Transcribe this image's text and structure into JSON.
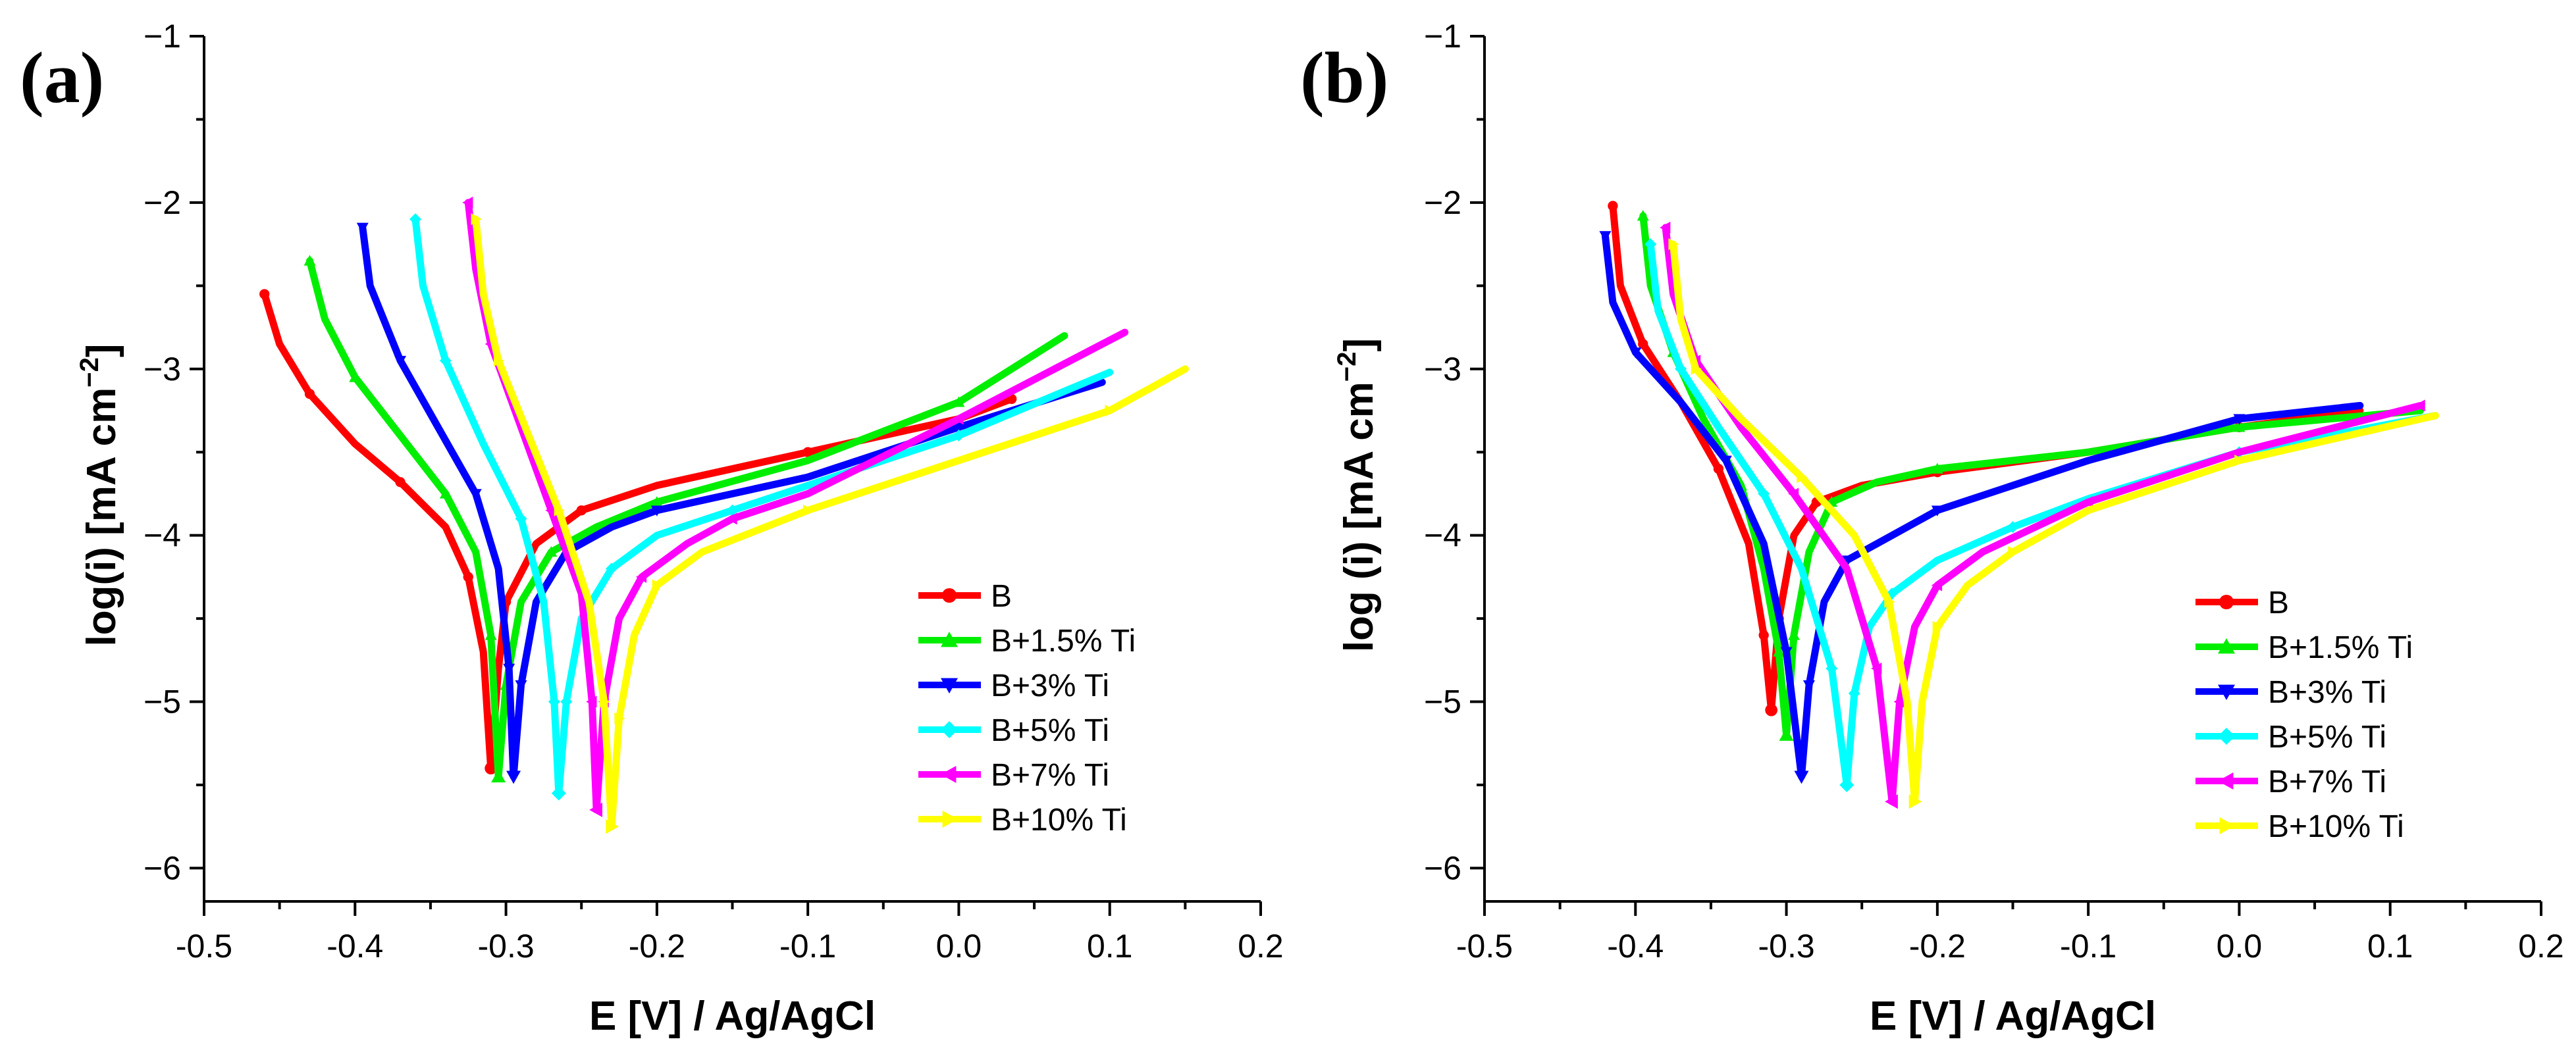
{
  "chart_data": [
    {
      "type": "line",
      "panel": "(a)",
      "xlabel": "E [V] / Ag/AgCl",
      "ylabel_main": "log(i) [mA cm",
      "ylabel_sup": "−2",
      "ylabel_close": "]",
      "xlim": [
        -0.5,
        0.2
      ],
      "ylim": [
        -6.2,
        -1
      ],
      "xticks": [
        -0.5,
        -0.4,
        -0.3,
        -0.2,
        -0.1,
        0.0,
        0.1,
        0.2
      ],
      "xtick_labels": [
        "-0.5",
        "-0.4",
        "-0.3",
        "-0.2",
        "-0.1",
        "0.0",
        "0.1",
        "0.2"
      ],
      "yticks": [
        -6,
        -5,
        -4,
        -3,
        -2,
        -1
      ],
      "ytick_labels": [
        "−6",
        "−5",
        "−4",
        "−3",
        "−2",
        "−1"
      ],
      "legend_position": "lower-right",
      "series": [
        {
          "name": "B",
          "color": "#ff0000",
          "marker": "circle",
          "Ecorr": -0.31,
          "logicorr": -5.4,
          "cathodic": [
            [
              -0.46,
              -2.55
            ],
            [
              -0.45,
              -2.85
            ],
            [
              -0.43,
              -3.15
            ],
            [
              -0.4,
              -3.45
            ],
            [
              -0.37,
              -3.68
            ],
            [
              -0.34,
              -3.95
            ],
            [
              -0.325,
              -4.25
            ],
            [
              -0.315,
              -4.7
            ],
            [
              -0.31,
              -5.4
            ]
          ],
          "anodic": [
            [
              -0.31,
              -5.4
            ],
            [
              -0.305,
              -4.8
            ],
            [
              -0.3,
              -4.4
            ],
            [
              -0.28,
              -4.05
            ],
            [
              -0.25,
              -3.85
            ],
            [
              -0.2,
              -3.7
            ],
            [
              -0.1,
              -3.5
            ],
            [
              0.0,
              -3.3
            ],
            [
              0.035,
              -3.18
            ]
          ]
        },
        {
          "name": "B+1.5% Ti",
          "color": "#00ee00",
          "marker": "triangle-up",
          "Ecorr": -0.305,
          "logicorr": -5.45,
          "cathodic": [
            [
              -0.43,
              -2.35
            ],
            [
              -0.42,
              -2.7
            ],
            [
              -0.4,
              -3.05
            ],
            [
              -0.37,
              -3.4
            ],
            [
              -0.34,
              -3.75
            ],
            [
              -0.32,
              -4.1
            ],
            [
              -0.31,
              -4.6
            ],
            [
              -0.305,
              -5.45
            ]
          ],
          "anodic": [
            [
              -0.305,
              -5.45
            ],
            [
              -0.3,
              -4.9
            ],
            [
              -0.29,
              -4.4
            ],
            [
              -0.27,
              -4.1
            ],
            [
              -0.24,
              -3.95
            ],
            [
              -0.2,
              -3.8
            ],
            [
              -0.1,
              -3.55
            ],
            [
              0.0,
              -3.2
            ],
            [
              0.07,
              -2.8
            ]
          ]
        },
        {
          "name": "B+3% Ti",
          "color": "#0000ff",
          "marker": "triangle-down",
          "Ecorr": -0.295,
          "logicorr": -5.45,
          "cathodic": [
            [
              -0.395,
              -2.15
            ],
            [
              -0.39,
              -2.5
            ],
            [
              -0.37,
              -2.95
            ],
            [
              -0.345,
              -3.35
            ],
            [
              -0.32,
              -3.75
            ],
            [
              -0.305,
              -4.2
            ],
            [
              -0.298,
              -4.8
            ],
            [
              -0.295,
              -5.45
            ]
          ],
          "anodic": [
            [
              -0.295,
              -5.45
            ],
            [
              -0.29,
              -4.9
            ],
            [
              -0.28,
              -4.4
            ],
            [
              -0.26,
              -4.1
            ],
            [
              -0.23,
              -3.95
            ],
            [
              -0.2,
              -3.85
            ],
            [
              -0.1,
              -3.65
            ],
            [
              0.0,
              -3.35
            ],
            [
              0.095,
              -3.08
            ]
          ]
        },
        {
          "name": "B+5% Ti",
          "color": "#00ffff",
          "marker": "diamond",
          "Ecorr": -0.265,
          "logicorr": -5.55,
          "cathodic": [
            [
              -0.36,
              -2.1
            ],
            [
              -0.355,
              -2.5
            ],
            [
              -0.34,
              -2.95
            ],
            [
              -0.315,
              -3.45
            ],
            [
              -0.29,
              -3.9
            ],
            [
              -0.275,
              -4.4
            ],
            [
              -0.268,
              -5.0
            ],
            [
              -0.265,
              -5.55
            ]
          ],
          "anodic": [
            [
              -0.265,
              -5.55
            ],
            [
              -0.26,
              -5.0
            ],
            [
              -0.25,
              -4.5
            ],
            [
              -0.23,
              -4.2
            ],
            [
              -0.2,
              -4.0
            ],
            [
              -0.15,
              -3.85
            ],
            [
              -0.1,
              -3.7
            ],
            [
              0.0,
              -3.4
            ],
            [
              0.1,
              -3.02
            ]
          ]
        },
        {
          "name": "B+7% Ti",
          "color": "#ff00ff",
          "marker": "triangle-left",
          "Ecorr": -0.24,
          "logicorr": -5.65,
          "cathodic": [
            [
              -0.325,
              -2.0
            ],
            [
              -0.32,
              -2.4
            ],
            [
              -0.31,
              -2.85
            ],
            [
              -0.29,
              -3.35
            ],
            [
              -0.27,
              -3.85
            ],
            [
              -0.25,
              -4.35
            ],
            [
              -0.243,
              -5.0
            ],
            [
              -0.24,
              -5.65
            ]
          ],
          "anodic": [
            [
              -0.24,
              -5.65
            ],
            [
              -0.235,
              -5.0
            ],
            [
              -0.225,
              -4.5
            ],
            [
              -0.21,
              -4.25
            ],
            [
              -0.18,
              -4.05
            ],
            [
              -0.15,
              -3.9
            ],
            [
              -0.1,
              -3.75
            ],
            [
              0.0,
              -3.3
            ],
            [
              0.11,
              -2.78
            ]
          ]
        },
        {
          "name": "B+10% Ti",
          "color": "#ffff00",
          "marker": "triangle-right",
          "Ecorr": -0.23,
          "logicorr": -5.75,
          "cathodic": [
            [
              -0.32,
              -2.1
            ],
            [
              -0.315,
              -2.55
            ],
            [
              -0.305,
              -2.95
            ],
            [
              -0.285,
              -3.4
            ],
            [
              -0.265,
              -3.85
            ],
            [
              -0.245,
              -4.4
            ],
            [
              -0.235,
              -5.0
            ],
            [
              -0.23,
              -5.75
            ]
          ],
          "anodic": [
            [
              -0.23,
              -5.75
            ],
            [
              -0.225,
              -5.1
            ],
            [
              -0.215,
              -4.6
            ],
            [
              -0.2,
              -4.3
            ],
            [
              -0.17,
              -4.1
            ],
            [
              -0.1,
              -3.85
            ],
            [
              0.0,
              -3.55
            ],
            [
              0.1,
              -3.25
            ],
            [
              0.15,
              -3.0
            ]
          ]
        }
      ]
    },
    {
      "type": "line",
      "panel": "(b)",
      "xlabel": "E [V] / Ag/AgCl",
      "ylabel_main": "log (i) [mA cm",
      "ylabel_sup": "−2",
      "ylabel_close": "]",
      "xlim": [
        -0.5,
        0.2
      ],
      "ylim": [
        -6.2,
        -1
      ],
      "xticks": [
        -0.5,
        -0.4,
        -0.3,
        -0.2,
        -0.1,
        0.0,
        0.1,
        0.2
      ],
      "xtick_labels": [
        "-0.5",
        "-0.4",
        "-0.3",
        "-0.2",
        "-0.1",
        "0.0",
        "0.1",
        "0.2"
      ],
      "yticks": [
        -6,
        -5,
        -4,
        -3,
        -2,
        -1
      ],
      "ytick_labels": [
        "−6",
        "−5",
        "−4",
        "−3",
        "−2",
        "−1"
      ],
      "legend_position": "lower-right",
      "series": [
        {
          "name": "B",
          "color": "#ff0000",
          "marker": "circle",
          "Ecorr": -0.31,
          "logicorr": -5.05,
          "cathodic": [
            [
              -0.415,
              -2.02
            ],
            [
              -0.41,
              -2.5
            ],
            [
              -0.395,
              -2.85
            ],
            [
              -0.37,
              -3.2
            ],
            [
              -0.345,
              -3.6
            ],
            [
              -0.325,
              -4.05
            ],
            [
              -0.315,
              -4.6
            ],
            [
              -0.31,
              -5.05
            ]
          ],
          "anodic": [
            [
              -0.31,
              -5.05
            ],
            [
              -0.305,
              -4.5
            ],
            [
              -0.295,
              -4.0
            ],
            [
              -0.28,
              -3.8
            ],
            [
              -0.25,
              -3.7
            ],
            [
              -0.2,
              -3.62
            ],
            [
              -0.1,
              -3.5
            ],
            [
              0.0,
              -3.35
            ],
            [
              0.08,
              -3.25
            ]
          ]
        },
        {
          "name": "B+1.5% Ti",
          "color": "#00ee00",
          "marker": "triangle-up",
          "Ecorr": -0.3,
          "logicorr": -5.2,
          "cathodic": [
            [
              -0.395,
              -2.08
            ],
            [
              -0.39,
              -2.5
            ],
            [
              -0.375,
              -2.9
            ],
            [
              -0.355,
              -3.3
            ],
            [
              -0.33,
              -3.7
            ],
            [
              -0.315,
              -4.2
            ],
            [
              -0.305,
              -4.7
            ],
            [
              -0.3,
              -5.2
            ]
          ],
          "anodic": [
            [
              -0.3,
              -5.2
            ],
            [
              -0.295,
              -4.6
            ],
            [
              -0.285,
              -4.1
            ],
            [
              -0.27,
              -3.8
            ],
            [
              -0.24,
              -3.68
            ],
            [
              -0.2,
              -3.6
            ],
            [
              -0.1,
              -3.5
            ],
            [
              0.0,
              -3.35
            ],
            [
              0.12,
              -3.25
            ]
          ]
        },
        {
          "name": "B+3% Ti",
          "color": "#0000ff",
          "marker": "triangle-down",
          "Ecorr": -0.29,
          "logicorr": -5.45,
          "cathodic": [
            [
              -0.42,
              -2.2
            ],
            [
              -0.415,
              -2.6
            ],
            [
              -0.4,
              -2.9
            ],
            [
              -0.37,
              -3.2
            ],
            [
              -0.34,
              -3.55
            ],
            [
              -0.315,
              -4.05
            ],
            [
              -0.3,
              -4.7
            ],
            [
              -0.29,
              -5.45
            ]
          ],
          "anodic": [
            [
              -0.29,
              -5.45
            ],
            [
              -0.285,
              -4.9
            ],
            [
              -0.275,
              -4.4
            ],
            [
              -0.26,
              -4.15
            ],
            [
              -0.23,
              -4.0
            ],
            [
              -0.2,
              -3.85
            ],
            [
              -0.1,
              -3.55
            ],
            [
              0.0,
              -3.3
            ],
            [
              0.08,
              -3.22
            ]
          ]
        },
        {
          "name": "B+5% Ti",
          "color": "#00ffff",
          "marker": "diamond",
          "Ecorr": -0.26,
          "logicorr": -5.5,
          "cathodic": [
            [
              -0.39,
              -2.25
            ],
            [
              -0.385,
              -2.65
            ],
            [
              -0.37,
              -3.0
            ],
            [
              -0.345,
              -3.35
            ],
            [
              -0.315,
              -3.75
            ],
            [
              -0.29,
              -4.2
            ],
            [
              -0.27,
              -4.8
            ],
            [
              -0.26,
              -5.5
            ]
          ],
          "anodic": [
            [
              -0.26,
              -5.5
            ],
            [
              -0.255,
              -4.95
            ],
            [
              -0.245,
              -4.55
            ],
            [
              -0.23,
              -4.35
            ],
            [
              -0.2,
              -4.15
            ],
            [
              -0.15,
              -3.95
            ],
            [
              -0.1,
              -3.78
            ],
            [
              0.0,
              -3.5
            ],
            [
              0.13,
              -3.28
            ]
          ]
        },
        {
          "name": "B+7% Ti",
          "color": "#ff00ff",
          "marker": "triangle-left",
          "Ecorr": -0.23,
          "logicorr": -5.6,
          "cathodic": [
            [
              -0.38,
              -2.15
            ],
            [
              -0.375,
              -2.55
            ],
            [
              -0.36,
              -2.95
            ],
            [
              -0.33,
              -3.35
            ],
            [
              -0.295,
              -3.75
            ],
            [
              -0.26,
              -4.2
            ],
            [
              -0.24,
              -4.8
            ],
            [
              -0.23,
              -5.6
            ]
          ],
          "anodic": [
            [
              -0.23,
              -5.6
            ],
            [
              -0.225,
              -5.0
            ],
            [
              -0.215,
              -4.55
            ],
            [
              -0.2,
              -4.3
            ],
            [
              -0.17,
              -4.1
            ],
            [
              -0.1,
              -3.8
            ],
            [
              0.0,
              -3.5
            ],
            [
              0.12,
              -3.22
            ]
          ]
        },
        {
          "name": "B+10% Ti",
          "color": "#ffff00",
          "marker": "triangle-right",
          "Ecorr": -0.215,
          "logicorr": -5.6,
          "cathodic": [
            [
              -0.375,
              -2.25
            ],
            [
              -0.37,
              -2.7
            ],
            [
              -0.36,
              -3.0
            ],
            [
              -0.33,
              -3.3
            ],
            [
              -0.29,
              -3.65
            ],
            [
              -0.255,
              -4.0
            ],
            [
              -0.232,
              -4.4
            ],
            [
              -0.22,
              -5.0
            ],
            [
              -0.215,
              -5.6
            ]
          ],
          "anodic": [
            [
              -0.215,
              -5.6
            ],
            [
              -0.21,
              -5.0
            ],
            [
              -0.2,
              -4.55
            ],
            [
              -0.18,
              -4.3
            ],
            [
              -0.15,
              -4.1
            ],
            [
              -0.1,
              -3.85
            ],
            [
              0.0,
              -3.55
            ],
            [
              0.13,
              -3.28
            ]
          ]
        }
      ]
    }
  ]
}
